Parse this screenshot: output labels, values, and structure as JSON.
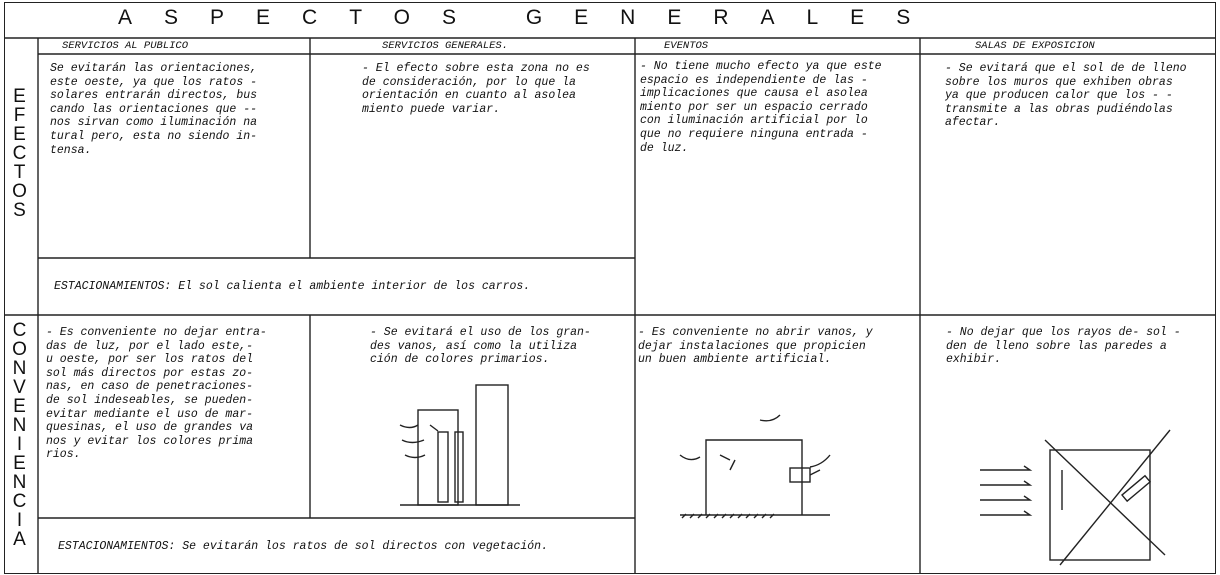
{
  "title": "ASPECTOS GENERALES",
  "columns": [
    "SERVICIOS AL PUBLICO",
    "SERVICIOS GENERALES.",
    "EVENTOS",
    "SALAS DE EXPOSICION"
  ],
  "rows": [
    {
      "label": "EFECTOS",
      "cells": [
        [
          "Se evitarán las orientaciones,",
          "este oeste, ya que los ratos -",
          "solares entrarán directos, bus",
          "cando las orientaciones que --",
          "nos sirvan como iluminación na",
          "tural pero, esta no siendo in-",
          "tensa."
        ],
        [
          "- El efecto sobre esta zona no es",
          "de consideración, por lo que la",
          "orientación en cuanto al asolea",
          "miento puede variar."
        ],
        [
          "- No tiene mucho efecto ya que este",
          "espacio es independiente de las -",
          "implicaciones que causa el asolea",
          "miento por ser un espacio cerrado",
          "con iluminación artificial por lo",
          "que no requiere ninguna entrada -",
          "de luz."
        ],
        [
          "- Se evitará que el sol de de lleno",
          "sobre los muros que exhiben obras",
          "ya que producen calor que los - -",
          "transmite a las obras pudiéndolas",
          "afectar."
        ]
      ],
      "parking": "ESTACIONAMIENTOS: El sol calienta el ambiente interior de los carros."
    },
    {
      "label": "CONVENIENCIA",
      "cells": [
        [
          "- Es conveniente no dejar entra-",
          "das de luz, por el lado este,-",
          "u oeste, por ser los ratos del",
          "sol más directos por estas zo-",
          "nas, en caso de penetraciones-",
          "de sol indeseables, se pueden-",
          "evitar mediante el uso de mar-",
          "quesinas, el uso de grandes va",
          "nos y evitar los colores prima",
          "rios."
        ],
        [
          "- Se evitará el uso de los gran-",
          "des vanos, así como la utiliza",
          "ción de colores primarios."
        ],
        [
          "- Es conveniente no abrir vanos, y",
          "dejar instalaciones que propicien",
          "un buen ambiente artificial."
        ],
        [
          "- No dejar que los rayos de- sol -",
          "den de lleno sobre las paredes a",
          "exhibir."
        ]
      ],
      "parking": "ESTACIONAMIENTOS: Se evitarán los ratos de sol directos con vegetación."
    }
  ]
}
